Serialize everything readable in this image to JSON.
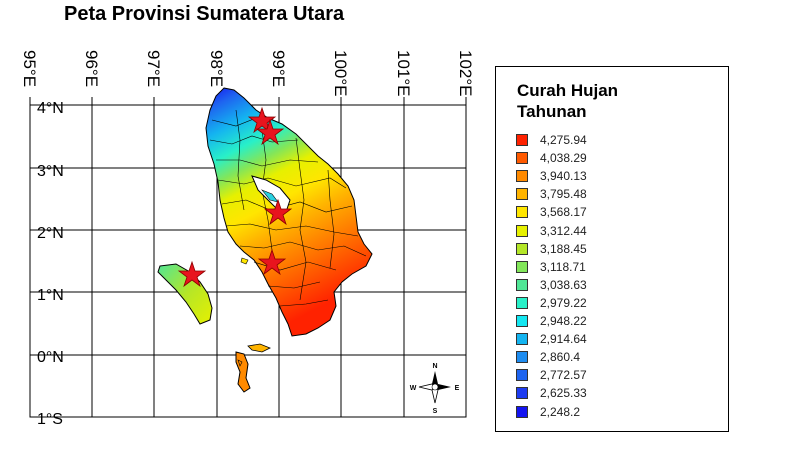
{
  "title": "Peta Provinsi Sumatera Utara",
  "longitude_labels": [
    "95°E",
    "96°E",
    "97°E",
    "98°E",
    "99°E",
    "100°E",
    "101°E",
    "102°E"
  ],
  "latitude_labels": [
    "4°N",
    "3°N",
    "2°N",
    "1°N",
    "0°N",
    "1°S"
  ],
  "compass": {
    "north": "N",
    "south": "S",
    "east": "E",
    "west": "W"
  },
  "legend": {
    "title_line1": "Curah Hujan",
    "title_line2": "Tahunan",
    "items": [
      {
        "label": "4,275.94",
        "color": "#ff2200"
      },
      {
        "label": "4,038.29",
        "color": "#ff5a00"
      },
      {
        "label": "3,940.13",
        "color": "#ff8a00"
      },
      {
        "label": "3,795.48",
        "color": "#ffb400"
      },
      {
        "label": "3,568.17",
        "color": "#ffe600"
      },
      {
        "label": "3,312.44",
        "color": "#e6f000"
      },
      {
        "label": "3,188.45",
        "color": "#b4e628"
      },
      {
        "label": "3,118.71",
        "color": "#82e65a"
      },
      {
        "label": "3,038.63",
        "color": "#50e696"
      },
      {
        "label": "2,979.22",
        "color": "#28f0c8"
      },
      {
        "label": "2,948.22",
        "color": "#14e6f0"
      },
      {
        "label": "2,914.64",
        "color": "#14b4f0"
      },
      {
        "label": "2,860.4",
        "color": "#1e8cf0"
      },
      {
        "label": "2,772.57",
        "color": "#1e64f0"
      },
      {
        "label": "2,625.33",
        "color": "#1e3cf0"
      },
      {
        "label": "2,248.2",
        "color": "#1414f0"
      }
    ]
  }
}
